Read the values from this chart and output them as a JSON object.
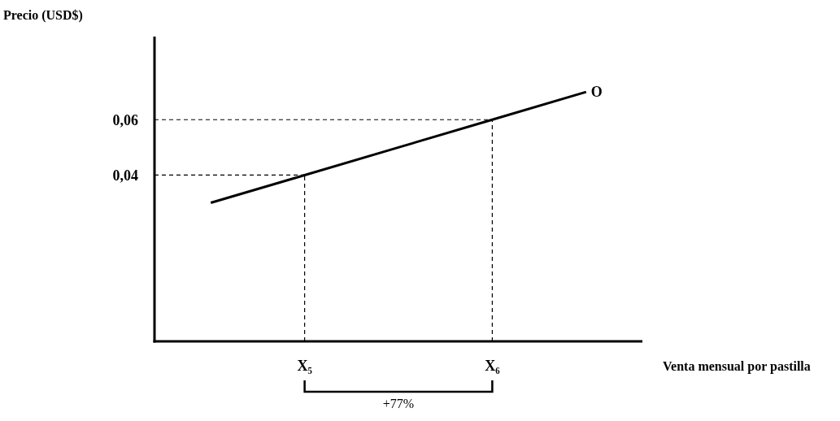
{
  "chart_data": {
    "type": "line",
    "xlabel": "Venta mensual por pastilla",
    "ylabel": "Precio (USD$)",
    "categories": [
      null,
      "X₅",
      null,
      "X₆",
      null
    ],
    "ylim": [
      -0.02,
      0.09
    ],
    "yticks": [
      {
        "value": 0.04,
        "label": "0,04"
      },
      {
        "value": 0.06,
        "label": "0,06"
      }
    ],
    "series": [
      {
        "name": "O",
        "color": "#000000",
        "values": [
          0.03,
          0.04,
          0.05,
          0.06,
          0.07
        ]
      }
    ],
    "ref_lines": [
      {
        "axis": "y",
        "value": 0.04,
        "line_style": "dashed",
        "color": "#000000"
      },
      {
        "axis": "y",
        "value": 0.06,
        "line_style": "dashed",
        "color": "#000000"
      },
      {
        "axis": "x",
        "value": "X₅",
        "line_style": "dashed",
        "color": "#000000"
      },
      {
        "axis": "x",
        "value": "X₆",
        "line_style": "dashed",
        "color": "#000000"
      }
    ],
    "annotations": [
      "+77%"
    ],
    "grid": false,
    "marker": "none",
    "line_style": "solid"
  }
}
